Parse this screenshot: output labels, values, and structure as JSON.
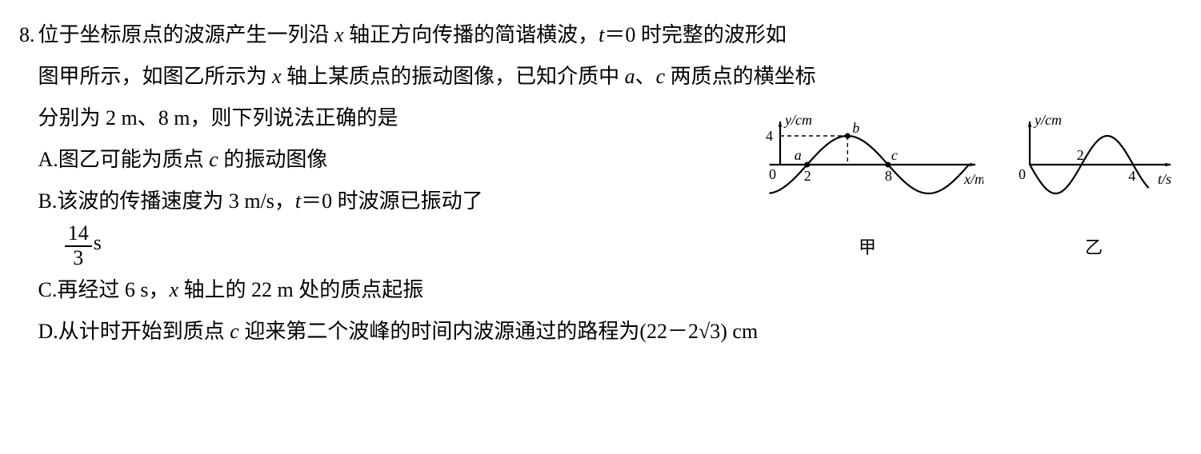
{
  "number": "8.",
  "stem_l1": "位于坐标原点的波源产生一列沿 x 轴正方向传播的简谐横波，t＝0 时完整的波形如",
  "stem_l2": "图甲所示，如图乙所示为 x 轴上某质点的振动图像，已知介质中 a、c 两质点的横坐标",
  "stem_l3": "分别为 2 m、8 m，则下列说法正确的是",
  "opts": {
    "A": {
      "lab": "A. ",
      "text": "图乙可能为质点 c 的振动图像"
    },
    "B": {
      "lab": "B. ",
      "text_a": "该波的传播速度为 3 m/s，t＝0 时波源已振动了",
      "frac_top": "14",
      "frac_bot": "3",
      "text_b": " s"
    },
    "C": {
      "lab": "C. ",
      "text": "再经过 6 s，x 轴上的 22 m 处的质点起振"
    },
    "D": {
      "lab": "D. ",
      "text": "从计时开始到质点 c 迎来第二个波峰的时间内波源通过的路程为(22－2√3) cm"
    }
  },
  "figA": {
    "label": "甲",
    "y_axis_label": "y/cm",
    "x_axis_label": "x/m",
    "y_tick": "4",
    "x_ticks": [
      "2",
      "8"
    ],
    "pts": {
      "a": "a",
      "b": "b",
      "c": "c"
    },
    "wavelength": 12,
    "amplitude": 4,
    "phase_offset": 2,
    "x_range": [
      -1,
      14
    ],
    "y_range": [
      -5,
      6
    ],
    "colors": {
      "axis": "#000000",
      "curve": "#000000",
      "dash": "#000000",
      "text": "#000000"
    },
    "line_width": 2.2
  },
  "figB": {
    "label": "乙",
    "y_axis_label": "y/cm",
    "x_axis_label": "t/s",
    "x_ticks": [
      "2",
      "4"
    ],
    "period": 4,
    "amplitude": 4,
    "x_range": [
      -0.3,
      5.2
    ],
    "y_range": [
      -5,
      6
    ],
    "colors": {
      "axis": "#000000",
      "curve": "#000000",
      "text": "#000000"
    },
    "line_width": 2.2
  }
}
